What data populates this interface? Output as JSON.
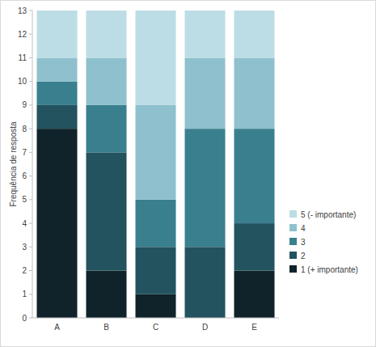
{
  "chart_data": {
    "type": "bar",
    "stacked": true,
    "y_label": "Frequência de resposta",
    "categories": [
      "A",
      "B",
      "C",
      "D",
      "E"
    ],
    "series": [
      {
        "name": "1 (+ importante)",
        "color": "#10232a",
        "values": [
          8,
          2,
          1,
          0,
          2
        ]
      },
      {
        "name": "2",
        "color": "#23535e",
        "values": [
          1,
          5,
          2,
          3,
          2
        ]
      },
      {
        "name": "3",
        "color": "#3a7f8e",
        "values": [
          1,
          2,
          2,
          5,
          4
        ]
      },
      {
        "name": "4",
        "color": "#8ec1cd",
        "values": [
          1,
          2,
          4,
          3,
          3
        ]
      },
      {
        "name": "5 (- importante)",
        "color": "#bcdde5",
        "values": [
          2,
          2,
          4,
          2,
          2
        ]
      }
    ],
    "ylim": [
      0,
      13
    ],
    "yticks": [
      0,
      1,
      2,
      3,
      4,
      5,
      6,
      7,
      8,
      9,
      10,
      11,
      12,
      13
    ],
    "legend": "right",
    "grid": false
  }
}
